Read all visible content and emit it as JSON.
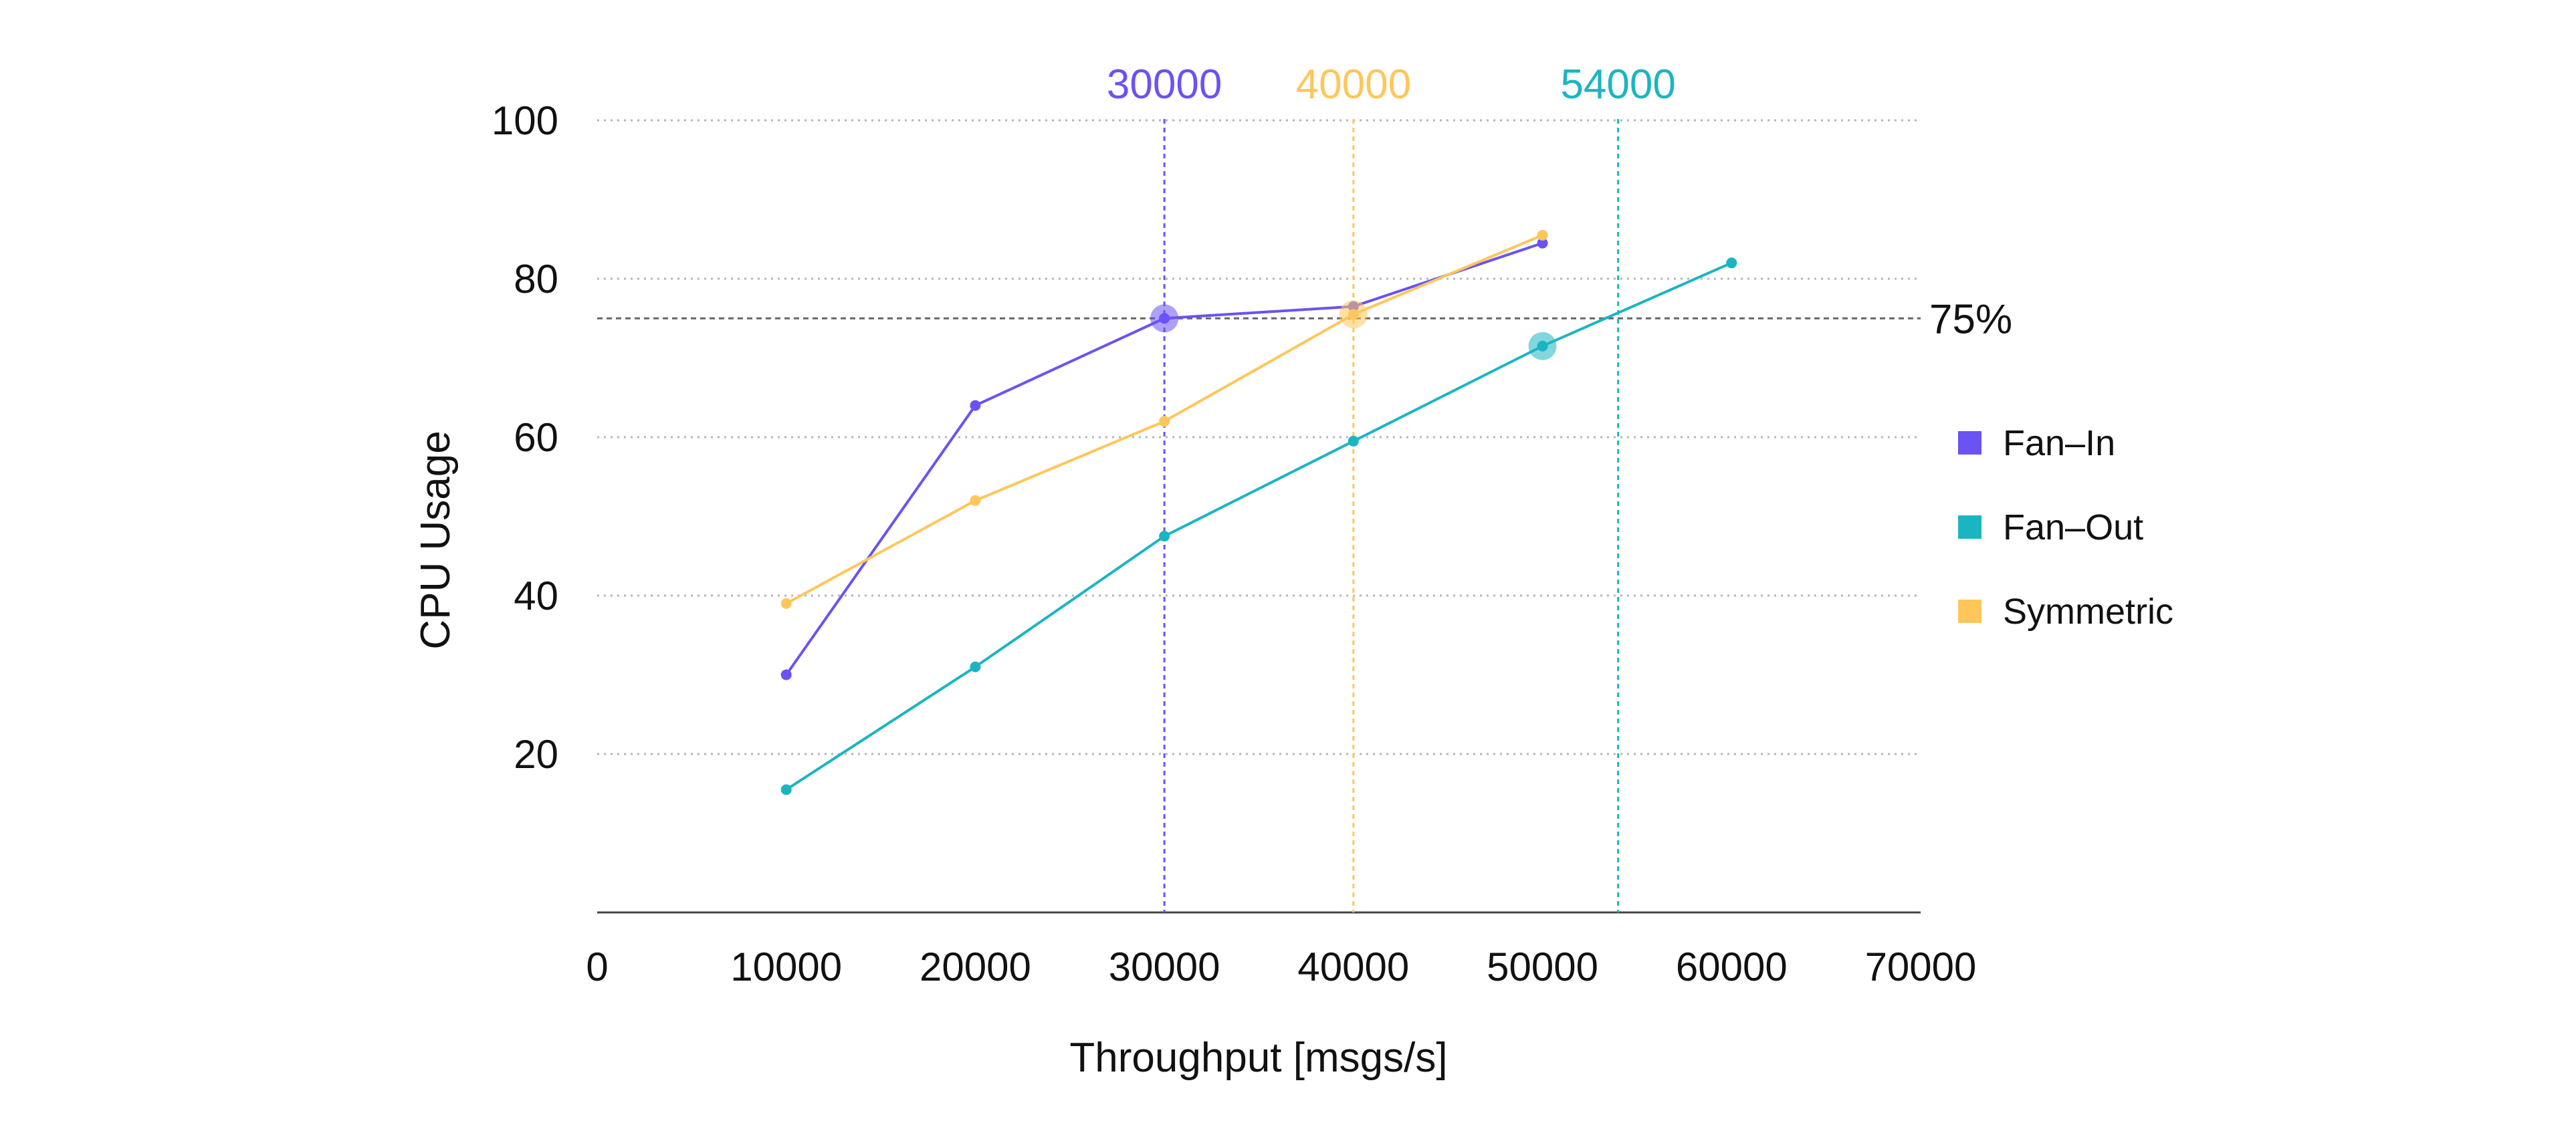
{
  "chart_data": {
    "type": "line",
    "title": "",
    "xlabel": "Throughput [msgs/s]",
    "ylabel": "CPU Usage",
    "xlim": [
      0,
      70000
    ],
    "ylim": [
      0,
      100
    ],
    "x_ticks": [
      0,
      10000,
      20000,
      30000,
      40000,
      50000,
      60000,
      70000
    ],
    "x_tick_labels": [
      "0",
      "10000",
      "20000",
      "30000",
      "40000",
      "50000",
      "60000",
      "70000"
    ],
    "y_ticks": [
      20,
      40,
      60,
      80,
      100
    ],
    "y_tick_labels": [
      "20",
      "40",
      "60",
      "80",
      "100"
    ],
    "grid": "horizontal dotted",
    "legend_position": "right",
    "series": [
      {
        "name": "Fan-In",
        "color": "#6a52f5",
        "x": [
          10000,
          20000,
          30000,
          40000,
          50000
        ],
        "y": [
          30,
          64,
          75,
          76.5,
          84.5
        ]
      },
      {
        "name": "Fan-Out",
        "color": "#1bb5c2",
        "x": [
          10000,
          20000,
          30000,
          40000,
          50000,
          60000
        ],
        "y": [
          15.5,
          31,
          47.5,
          59.5,
          71.5,
          82
        ]
      },
      {
        "name": "Symmetric",
        "color": "#ffc65a",
        "x": [
          10000,
          20000,
          30000,
          40000,
          50000
        ],
        "y": [
          39,
          52,
          62,
          75.5,
          85.5
        ]
      }
    ],
    "reference_lines": {
      "horizontal": {
        "y": 75,
        "label": "75%",
        "color": "#666666"
      },
      "vertical": [
        {
          "x": 30000,
          "label": "30000",
          "color": "#6a52f5"
        },
        {
          "x": 40000,
          "label": "40000",
          "color": "#ffc65a"
        },
        {
          "x": 54000,
          "label": "54000",
          "color": "#1bb5c2"
        }
      ]
    },
    "highlight_points": [
      {
        "series": "Fan-In",
        "x": 30000,
        "y": 75,
        "color": "#6a52f5"
      },
      {
        "series": "Symmetric",
        "x": 40000,
        "y": 75.5,
        "color": "#ffc65a"
      },
      {
        "series": "Fan-Out",
        "x": 50000,
        "y": 71.5,
        "color": "#1bb5c2"
      }
    ],
    "legend": [
      {
        "label": "Fan–In",
        "color": "#6a52f5"
      },
      {
        "label": "Fan–Out",
        "color": "#1bb5c2"
      },
      {
        "label": "Symmetric",
        "color": "#ffc65a"
      }
    ]
  }
}
